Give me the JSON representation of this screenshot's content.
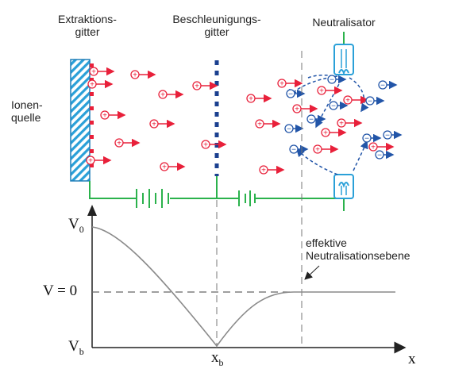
{
  "labels": {
    "extraction_grid": [
      "Extraktions-",
      "gitter"
    ],
    "acceleration_grid": [
      "Beschleunigungs-",
      "gitter"
    ],
    "neutralizer": "Neutralisator",
    "ion_source": [
      "Ionen-",
      "quelle"
    ],
    "effective_plane": [
      "effektive",
      "Neutralisationsebene"
    ]
  },
  "axis": {
    "v0": "V",
    "v0_sub": "0",
    "v_zero": "V = 0",
    "vb": "V",
    "vb_sub": "b",
    "xb": "x",
    "xb_sub": "b",
    "x": "x"
  },
  "colors": {
    "ion": "#e8203a",
    "electron": "#2255a8",
    "wire": "#2bb24c",
    "grid_hatch": "#2aa0d8",
    "accel_grid": "#1a3f8f",
    "curve": "#888888"
  },
  "particles": {
    "ion_symbol": "+",
    "electron_symbol": "−"
  }
}
